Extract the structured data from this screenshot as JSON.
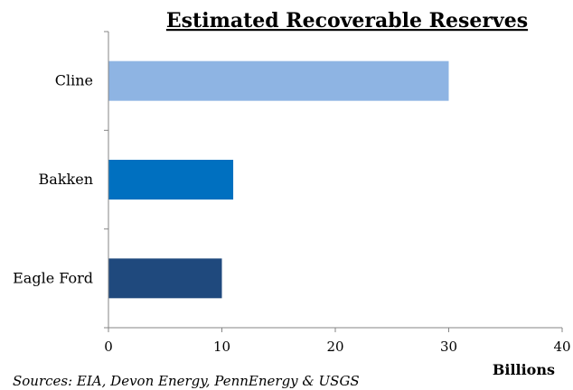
{
  "chart_data": {
    "type": "bar",
    "orientation": "horizontal",
    "title": "Estimated Recoverable Reserves",
    "categories": [
      "Cline",
      "Bakken",
      "Eagle Ford"
    ],
    "values": [
      30,
      11,
      10
    ],
    "colors": [
      "#8eb4e3",
      "#0070c0",
      "#1f497d"
    ],
    "xlim": [
      0,
      40
    ],
    "xticks": [
      0,
      10,
      20,
      30,
      40
    ],
    "xlabel": "Billions",
    "grid": false
  },
  "source_note": "Sources: EIA, Devon Energy, PennEnergy & USGS"
}
